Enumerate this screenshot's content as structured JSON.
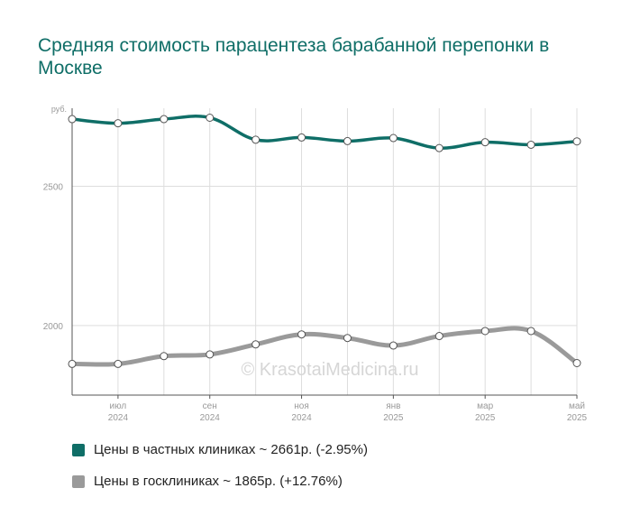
{
  "title": "Средняя стоимость парацентеза барабанной перепонки в Москве",
  "watermark": "© KrasotaiMedicina.ru",
  "colors": {
    "private": "#0f6e67",
    "public": "#9a9a9a",
    "grid": "#dddddd",
    "axis": "#555555",
    "tick_text": "#999999"
  },
  "chart_data": {
    "type": "line",
    "ylabel": "руб.",
    "ylim": [
      1750,
      2780
    ],
    "yticks": [
      2000,
      2500
    ],
    "x_months": [
      "2024-06",
      "2024-07",
      "2024-08",
      "2024-09",
      "2024-10",
      "2024-11",
      "2024-12",
      "2025-01",
      "2025-02",
      "2025-03",
      "2025-04",
      "2025-05"
    ],
    "x_tick_labels": [
      {
        "index": 1,
        "top": "июл",
        "bottom": "2024"
      },
      {
        "index": 3,
        "top": "сен",
        "bottom": "2024"
      },
      {
        "index": 5,
        "top": "ноя",
        "bottom": "2024"
      },
      {
        "index": 7,
        "top": "янв",
        "bottom": "2025"
      },
      {
        "index": 9,
        "top": "мар",
        "bottom": "2025"
      },
      {
        "index": 11,
        "top": "май",
        "bottom": "2025"
      }
    ],
    "grid": true,
    "series": [
      {
        "name": "Цены в частных клиниках",
        "key": "private",
        "values": [
          2741,
          2726,
          2741,
          2746,
          2667,
          2675,
          2662,
          2673,
          2637,
          2658,
          2649,
          2661
        ]
      },
      {
        "name": "Цены в госклиниках",
        "key": "public",
        "values": [
          1862,
          1862,
          1890,
          1896,
          1932,
          1968,
          1955,
          1928,
          1962,
          1980,
          1980,
          1865
        ]
      }
    ]
  },
  "legend": [
    {
      "label": "Цены в частных клиниках ~ 2661р. (-2.95%)",
      "color": "#0f6e67"
    },
    {
      "label": "Цены в госклиниках ~ 1865р. (+12.76%)",
      "color": "#9a9a9a"
    }
  ]
}
